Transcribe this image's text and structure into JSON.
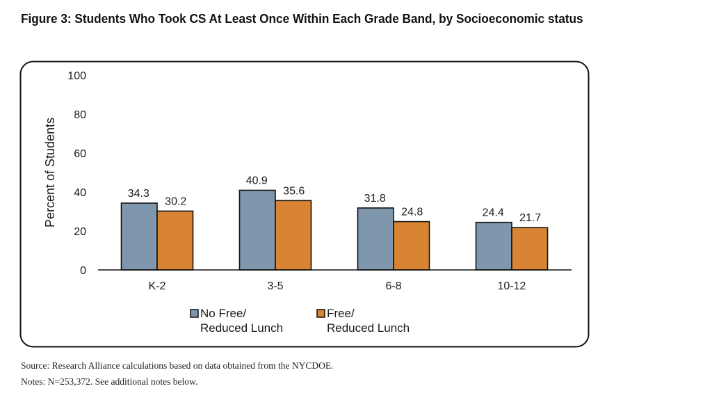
{
  "title": "Figure 3: Students Who Took CS At Least Once Within Each Grade Band, by Socioeconomic status",
  "footer": {
    "source": "Source: Research Alliance calculations based on data obtained from the NYCDOE.",
    "notes": "Notes: N=253,372. See additional notes below."
  },
  "chart_data": {
    "type": "bar",
    "title": "Figure 3: Students Who Took CS At Least Once Within Each Grade Band, by Socioeconomic status",
    "xlabel": "",
    "ylabel": "Percent of Students",
    "ylim": [
      0,
      100
    ],
    "yticks": [
      0,
      20,
      40,
      60,
      80,
      100
    ],
    "grid": false,
    "categories": [
      "K-2",
      "3-5",
      "6-8",
      "10-12"
    ],
    "series": [
      {
        "name": "No Free/ Reduced Lunch",
        "legend_lines": [
          "No Free/",
          "Reduced Lunch"
        ],
        "color": "#7f97ac",
        "values": [
          34.3,
          40.9,
          31.8,
          24.4
        ]
      },
      {
        "name": "Free/ Reduced Lunch",
        "legend_lines": [
          "Free/",
          "Reduced Lunch"
        ],
        "color": "#d98432",
        "values": [
          30.2,
          35.6,
          24.8,
          21.7
        ]
      }
    ],
    "legend_position": "bottom",
    "data_labels": true
  }
}
